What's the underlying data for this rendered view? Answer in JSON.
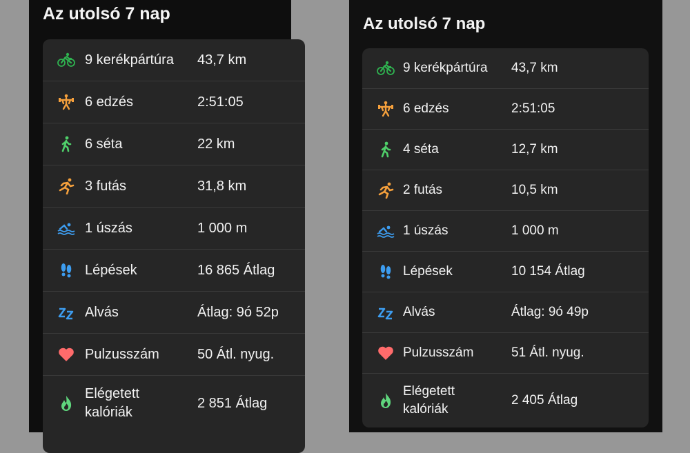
{
  "colors": {
    "green": "#2fb350",
    "orange": "#f5a03c",
    "walk": "#4fd06a",
    "blue": "#3d9df0",
    "heart": "#ff6b6b",
    "flame": "#5fd67d"
  },
  "left": {
    "title": "Az utolsó 7 nap",
    "rows": [
      {
        "icon": "bicycle-icon",
        "label": "9 kerékpártúra",
        "value": "43,7 km"
      },
      {
        "icon": "workout-icon",
        "label": "6 edzés",
        "value": "2:51:05"
      },
      {
        "icon": "walking-icon",
        "label": "6 séta",
        "value": "22 km"
      },
      {
        "icon": "running-icon",
        "label": "3 futás",
        "value": "31,8 km"
      },
      {
        "icon": "swimming-icon",
        "label": "1 úszás",
        "value": "1 000 m"
      },
      {
        "icon": "footprints-icon",
        "label": "Lépések",
        "value": "16 865 Átlag"
      },
      {
        "icon": "sleep-icon",
        "label": "Alvás",
        "value": "Átlag: 9ó 52p"
      },
      {
        "icon": "heart-icon",
        "label": "Pulzusszám",
        "value": "50 Átl. nyug."
      },
      {
        "icon": "flame-icon",
        "label": "Elégetett",
        "label2": "kalóriák",
        "value": "2 851 Átlag"
      }
    ]
  },
  "right": {
    "title": "Az utolsó 7 nap",
    "rows": [
      {
        "icon": "bicycle-icon",
        "label": "9 kerékpártúra",
        "value": "43,7 km"
      },
      {
        "icon": "workout-icon",
        "label": "6 edzés",
        "value": "2:51:05"
      },
      {
        "icon": "walking-icon",
        "label": "4 séta",
        "value": "12,7 km"
      },
      {
        "icon": "running-icon",
        "label": "2 futás",
        "value": "10,5 km"
      },
      {
        "icon": "swimming-icon",
        "label": "1 úszás",
        "value": "1 000 m"
      },
      {
        "icon": "footprints-icon",
        "label": "Lépések",
        "value": "10 154 Átlag"
      },
      {
        "icon": "sleep-icon",
        "label": "Alvás",
        "value": "Átlag: 9ó 49p"
      },
      {
        "icon": "heart-icon",
        "label": "Pulzusszám",
        "value": "51 Átl. nyug."
      },
      {
        "icon": "flame-icon",
        "label": "Elégetett",
        "label2": "kalóriák",
        "value": "2 405 Átlag"
      }
    ]
  }
}
